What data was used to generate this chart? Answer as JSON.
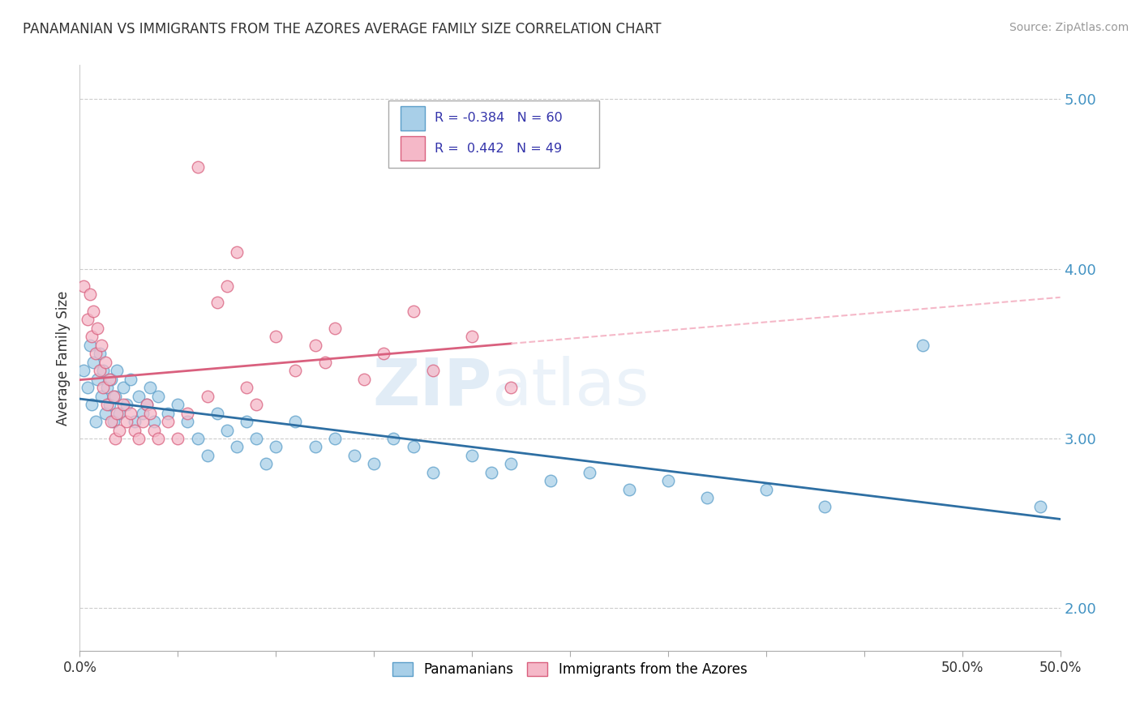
{
  "title": "PANAMANIAN VS IMMIGRANTS FROM THE AZORES AVERAGE FAMILY SIZE CORRELATION CHART",
  "source": "Source: ZipAtlas.com",
  "ylabel": "Average Family Size",
  "xmin": 0.0,
  "xmax": 0.5,
  "ymin": 1.75,
  "ymax": 5.2,
  "yticks": [
    2.0,
    3.0,
    4.0,
    5.0
  ],
  "xtick_positions": [
    0.0,
    0.05,
    0.1,
    0.15,
    0.2,
    0.25,
    0.3,
    0.35,
    0.4,
    0.45,
    0.5
  ],
  "xtick_labels_show": {
    "0.0": "0.0%",
    "0.5": "50.0%"
  },
  "blue_color": "#a8cfe8",
  "blue_edge": "#5b9ec9",
  "pink_color": "#f5b8c8",
  "pink_edge": "#d9607e",
  "blue_label": "Panamanians",
  "pink_label": "Immigrants from the Azores",
  "R_blue": -0.384,
  "N_blue": 60,
  "R_pink": 0.442,
  "N_pink": 49,
  "blue_line_color": "#2e6fa3",
  "pink_line_color": "#d9607e",
  "pink_dash_color": "#f5b8c8",
  "watermark_zip": "ZIP",
  "watermark_atlas": "atlas",
  "background_color": "#ffffff",
  "grid_color": "#cccccc",
  "legend_color": "#3333aa",
  "blue_scatter_x": [
    0.002,
    0.004,
    0.005,
    0.006,
    0.007,
    0.008,
    0.009,
    0.01,
    0.011,
    0.012,
    0.013,
    0.014,
    0.015,
    0.016,
    0.017,
    0.018,
    0.019,
    0.02,
    0.022,
    0.024,
    0.026,
    0.028,
    0.03,
    0.032,
    0.034,
    0.036,
    0.038,
    0.04,
    0.045,
    0.05,
    0.055,
    0.06,
    0.065,
    0.07,
    0.075,
    0.08,
    0.085,
    0.09,
    0.095,
    0.1,
    0.11,
    0.12,
    0.13,
    0.14,
    0.15,
    0.16,
    0.17,
    0.18,
    0.2,
    0.21,
    0.22,
    0.24,
    0.26,
    0.28,
    0.3,
    0.32,
    0.35,
    0.38,
    0.43,
    0.49
  ],
  "blue_scatter_y": [
    3.4,
    3.3,
    3.55,
    3.2,
    3.45,
    3.1,
    3.35,
    3.5,
    3.25,
    3.4,
    3.15,
    3.3,
    3.2,
    3.35,
    3.1,
    3.25,
    3.4,
    3.15,
    3.3,
    3.2,
    3.35,
    3.1,
    3.25,
    3.15,
    3.2,
    3.3,
    3.1,
    3.25,
    3.15,
    3.2,
    3.1,
    3.0,
    2.9,
    3.15,
    3.05,
    2.95,
    3.1,
    3.0,
    2.85,
    2.95,
    3.1,
    2.95,
    3.0,
    2.9,
    2.85,
    3.0,
    2.95,
    2.8,
    2.9,
    2.8,
    2.85,
    2.75,
    2.8,
    2.7,
    2.75,
    2.65,
    2.7,
    2.6,
    3.55,
    2.6
  ],
  "pink_scatter_x": [
    0.002,
    0.004,
    0.005,
    0.006,
    0.007,
    0.008,
    0.009,
    0.01,
    0.011,
    0.012,
    0.013,
    0.014,
    0.015,
    0.016,
    0.017,
    0.018,
    0.019,
    0.02,
    0.022,
    0.024,
    0.026,
    0.028,
    0.03,
    0.032,
    0.034,
    0.036,
    0.038,
    0.04,
    0.045,
    0.05,
    0.055,
    0.06,
    0.065,
    0.07,
    0.075,
    0.08,
    0.085,
    0.09,
    0.1,
    0.11,
    0.12,
    0.125,
    0.13,
    0.145,
    0.155,
    0.17,
    0.18,
    0.2,
    0.22
  ],
  "pink_scatter_y": [
    3.9,
    3.7,
    3.85,
    3.6,
    3.75,
    3.5,
    3.65,
    3.4,
    3.55,
    3.3,
    3.45,
    3.2,
    3.35,
    3.1,
    3.25,
    3.0,
    3.15,
    3.05,
    3.2,
    3.1,
    3.15,
    3.05,
    3.0,
    3.1,
    3.2,
    3.15,
    3.05,
    3.0,
    3.1,
    3.0,
    3.15,
    4.6,
    3.25,
    3.8,
    3.9,
    4.1,
    3.3,
    3.2,
    3.6,
    3.4,
    3.55,
    3.45,
    3.65,
    3.35,
    3.5,
    3.75,
    3.4,
    3.6,
    3.3
  ]
}
